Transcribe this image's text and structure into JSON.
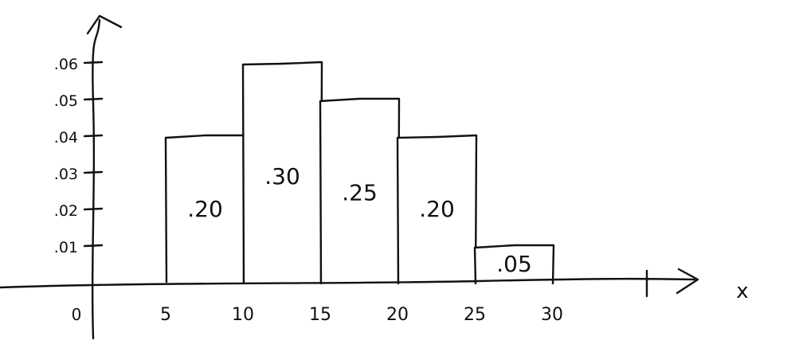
{
  "chart_data": {
    "type": "bar",
    "title": "",
    "xlabel": "x",
    "ylabel": "",
    "origin_label": "0",
    "x_ticks": [
      "5",
      "10",
      "15",
      "20",
      "25",
      "30"
    ],
    "y_ticks": [
      ".01",
      ".02",
      ".03",
      ".04",
      ".05",
      ".06"
    ],
    "xlim": [
      0,
      35
    ],
    "ylim": [
      0,
      0.06
    ],
    "grid": false,
    "bins": [
      {
        "from": 5,
        "to": 10,
        "density": 0.04,
        "label": ".20"
      },
      {
        "from": 10,
        "to": 15,
        "density": 0.06,
        "label": ".30"
      },
      {
        "from": 15,
        "to": 20,
        "density": 0.05,
        "label": ".25"
      },
      {
        "from": 20,
        "to": 25,
        "density": 0.04,
        "label": ".20"
      },
      {
        "from": 25,
        "to": 30,
        "density": 0.01,
        "label": ".05"
      }
    ]
  }
}
